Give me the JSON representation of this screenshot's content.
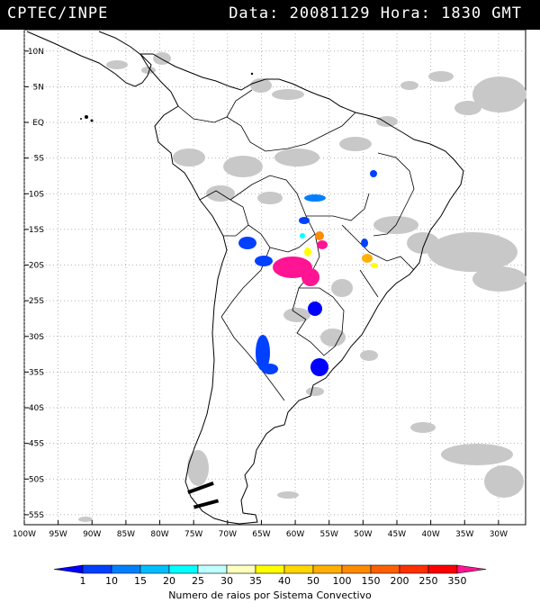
{
  "header": {
    "org": "CPTEC/INPE",
    "info": "Data: 20081129 Hora: 1830 GMT"
  },
  "lat_labels": [
    "10N",
    "5N",
    "EQ",
    "5S",
    "10S",
    "15S",
    "20S",
    "25S",
    "30S",
    "35S",
    "40S",
    "45S",
    "50S",
    "55S"
  ],
  "lon_labels": [
    "100W",
    "95W",
    "90W",
    "85W",
    "80W",
    "75W",
    "70W",
    "65W",
    "60W",
    "55W",
    "50W",
    "45W",
    "40W",
    "35W",
    "30W"
  ],
  "colorbar": {
    "title": "Numero de raios por Sistema Convectivo",
    "labels": [
      "1",
      "10",
      "15",
      "20",
      "25",
      "30",
      "35",
      "40",
      "50",
      "100",
      "150",
      "200",
      "250",
      "350"
    ],
    "colors": [
      "#0000ff",
      "#0040ff",
      "#0080ff",
      "#00bfff",
      "#00ffff",
      "#bfffff",
      "#ffffbf",
      "#ffff00",
      "#ffd700",
      "#ffb000",
      "#ff8c00",
      "#ff6000",
      "#ff3000",
      "#ff0000",
      "#ff1493"
    ]
  },
  "colors": {
    "cloud": "#c8c8c8",
    "land_line": "#000000",
    "grid": "#9a9a9a"
  }
}
